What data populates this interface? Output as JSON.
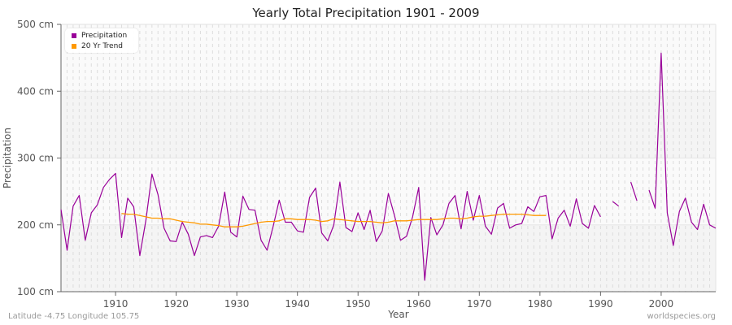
{
  "header": {
    "title": "Yearly Total Precipitation 1901 - 2009"
  },
  "footer": {
    "location": "Latitude -4.75 Longitude 105.75",
    "source": "worldspecies.org"
  },
  "legend": {
    "items": [
      {
        "label": "Precipitation",
        "color": "#990099"
      },
      {
        "label": "20 Yr Trend",
        "color": "#ff9900"
      }
    ]
  },
  "chart_data": {
    "type": "line",
    "title": "Yearly Total Precipitation 1901 - 2009",
    "xlabel": "Year",
    "ylabel": "Precipitation",
    "xlim": [
      1901,
      2009
    ],
    "ylim": [
      100,
      500
    ],
    "y_unit": "cm",
    "yticks": [
      100,
      200,
      300,
      400,
      500
    ],
    "ytick_labels": [
      "100 cm",
      "200 cm",
      "300 cm",
      "400 cm",
      "500 cm"
    ],
    "xticks": [
      1910,
      1920,
      1930,
      1940,
      1950,
      1960,
      1970,
      1980,
      1990,
      2000
    ],
    "grid": true,
    "legend_position": "top-left",
    "series": [
      {
        "name": "Precipitation",
        "color": "#990099",
        "x": [
          1901,
          1902,
          1903,
          1904,
          1905,
          1906,
          1907,
          1908,
          1909,
          1910,
          1911,
          1912,
          1913,
          1914,
          1915,
          1916,
          1917,
          1918,
          1919,
          1920,
          1921,
          1922,
          1923,
          1924,
          1925,
          1926,
          1927,
          1928,
          1929,
          1930,
          1931,
          1932,
          1933,
          1934,
          1935,
          1936,
          1937,
          1938,
          1939,
          1940,
          1941,
          1942,
          1943,
          1944,
          1945,
          1946,
          1947,
          1948,
          1949,
          1950,
          1951,
          1952,
          1953,
          1954,
          1955,
          1956,
          1957,
          1958,
          1959,
          1960,
          1961,
          1962,
          1963,
          1964,
          1965,
          1966,
          1967,
          1968,
          1969,
          1970,
          1971,
          1972,
          1973,
          1974,
          1975,
          1976,
          1977,
          1978,
          1979,
          1980,
          1981,
          1982,
          1983,
          1984,
          1985,
          1986,
          1987,
          1988,
          1989,
          1990,
          1991,
          1992,
          1993,
          1994,
          1995,
          1996,
          1997,
          1998,
          1999,
          2000,
          2001,
          2002,
          2003,
          2004,
          2005,
          2006,
          2007,
          2008,
          2009
        ],
        "values": [
          223,
          162,
          228,
          244,
          177,
          218,
          230,
          256,
          268,
          277,
          181,
          240,
          227,
          154,
          207,
          276,
          245,
          195,
          176,
          175,
          204,
          186,
          154,
          182,
          184,
          181,
          198,
          249,
          189,
          182,
          243,
          223,
          222,
          177,
          162,
          198,
          237,
          204,
          204,
          191,
          189,
          241,
          255,
          188,
          176,
          200,
          264,
          196,
          190,
          218,
          193,
          222,
          175,
          191,
          247,
          214,
          177,
          183,
          212,
          256,
          117,
          211,
          185,
          200,
          232,
          244,
          194,
          250,
          207,
          244,
          198,
          186,
          225,
          232,
          195,
          200,
          202,
          227,
          220,
          242,
          244,
          179,
          210,
          222,
          198,
          239,
          202,
          195,
          229,
          212,
          null,
          235,
          228,
          null,
          264,
          236,
          null,
          252,
          225,
          457,
          218,
          169,
          220,
          240,
          204,
          193,
          231,
          200,
          195
        ]
      },
      {
        "name": "20 Yr Trend",
        "color": "#ff9900",
        "x": [
          1911,
          1912,
          1913,
          1914,
          1915,
          1916,
          1917,
          1918,
          1919,
          1920,
          1921,
          1922,
          1923,
          1924,
          1925,
          1926,
          1927,
          1928,
          1929,
          1930,
          1931,
          1932,
          1933,
          1934,
          1935,
          1936,
          1937,
          1938,
          1939,
          1940,
          1941,
          1942,
          1943,
          1944,
          1945,
          1946,
          1947,
          1948,
          1949,
          1950,
          1951,
          1952,
          1953,
          1954,
          1955,
          1956,
          1957,
          1958,
          1959,
          1960,
          1961,
          1962,
          1963,
          1964,
          1965,
          1966,
          1967,
          1968,
          1969,
          1970,
          1971,
          1972,
          1973,
          1974,
          1975,
          1976,
          1977,
          1978,
          1979,
          1980,
          1981
        ],
        "values": [
          217,
          216,
          216,
          214,
          212,
          210,
          210,
          209,
          209,
          207,
          205,
          204,
          203,
          201,
          201,
          200,
          199,
          197,
          197,
          197,
          198,
          200,
          202,
          204,
          205,
          205,
          206,
          209,
          209,
          208,
          208,
          208,
          207,
          205,
          206,
          209,
          208,
          207,
          206,
          205,
          205,
          205,
          204,
          203,
          204,
          206,
          206,
          206,
          207,
          208,
          208,
          208,
          208,
          209,
          210,
          210,
          209,
          210,
          212,
          213,
          213,
          214,
          215,
          216,
          216,
          216,
          216,
          215,
          214,
          214,
          214
        ]
      }
    ]
  }
}
